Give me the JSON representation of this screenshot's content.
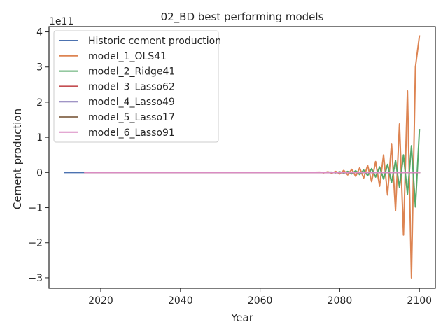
{
  "chart_data": {
    "type": "line",
    "title": "02_BD best performing models",
    "xlabel": "Year",
    "ylabel": "Cement production",
    "y_scale_label": "1e11",
    "xlim": [
      2007,
      2104
    ],
    "ylim": [
      -3.3,
      4.15
    ],
    "x_ticks": [
      2020,
      2040,
      2060,
      2080,
      2100
    ],
    "y_ticks": [
      -3,
      -2,
      -1,
      0,
      1,
      2,
      3,
      4
    ],
    "y_tick_labels": [
      "−3",
      "−2",
      "−1",
      "0",
      "1",
      "2",
      "3",
      "4"
    ],
    "grid": false,
    "legend_position": "upper-left",
    "series": [
      {
        "name": "Historic cement production",
        "color": "#4c72b0",
        "x": [
          2011,
          2016
        ],
        "y": [
          0,
          0
        ]
      },
      {
        "name": "model_1_OLS41",
        "color": "#dd8452",
        "x": [
          2016,
          2070,
          2075,
          2076,
          2077,
          2078,
          2079,
          2080,
          2081,
          2082,
          2083,
          2084,
          2085,
          2086,
          2087,
          2088,
          2089,
          2090,
          2091,
          2092,
          2093,
          2094,
          2095,
          2096,
          2097,
          2098,
          2099,
          2100
        ],
        "y": [
          0,
          0,
          0.01,
          -0.01,
          0.02,
          -0.02,
          0.03,
          -0.04,
          0.06,
          -0.07,
          0.09,
          -0.11,
          0.13,
          -0.16,
          0.2,
          -0.26,
          0.31,
          -0.39,
          0.5,
          -0.64,
          0.82,
          -1.08,
          1.38,
          -1.78,
          2.32,
          -3.0,
          3.0,
          3.88
        ]
      },
      {
        "name": "model_2_Ridge41",
        "color": "#55a868",
        "x": [
          2016,
          2072,
          2078,
          2079,
          2080,
          2081,
          2082,
          2083,
          2084,
          2085,
          2086,
          2087,
          2088,
          2089,
          2090,
          2091,
          2092,
          2093,
          2094,
          2095,
          2096,
          2097,
          2098,
          2099,
          2100
        ],
        "y": [
          0,
          0,
          0.01,
          -0.01,
          0.02,
          -0.02,
          0.03,
          -0.04,
          0.05,
          -0.06,
          0.07,
          -0.09,
          0.11,
          -0.13,
          0.16,
          -0.19,
          0.23,
          -0.29,
          0.34,
          -0.42,
          0.5,
          -0.62,
          0.76,
          -0.98,
          1.22
        ]
      },
      {
        "name": "model_3_Lasso62",
        "color": "#c44e52",
        "x": [
          2016,
          2100
        ],
        "y": [
          0,
          0
        ]
      },
      {
        "name": "model_4_Lasso49",
        "color": "#8172b3",
        "x": [
          2016,
          2100
        ],
        "y": [
          0,
          0
        ]
      },
      {
        "name": "model_5_Lasso17",
        "color": "#937860",
        "x": [
          2016,
          2100
        ],
        "y": [
          0,
          0
        ]
      },
      {
        "name": "model_6_Lasso91",
        "color": "#da8bc3",
        "x": [
          2016,
          2100
        ],
        "y": [
          0,
          0
        ]
      }
    ]
  }
}
